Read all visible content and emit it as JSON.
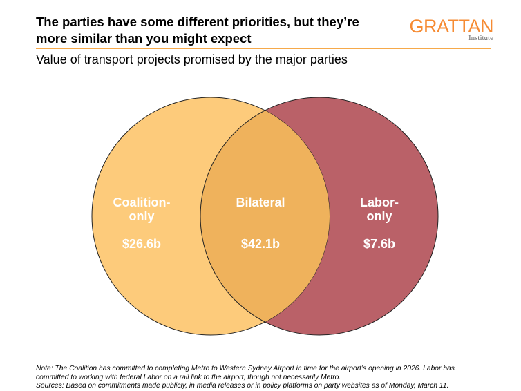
{
  "title_lines": [
    "The parties have some different priorities, but they’re",
    "more similar than you might expect"
  ],
  "logo": {
    "name": "GRATTAN",
    "sub": "Institute"
  },
  "subtitle": "Value of transport projects promised by the major parties",
  "chart_data": {
    "type": "venn",
    "sets": [
      {
        "name": "Coalition-only",
        "label_lines": [
          "Coalition-",
          "only"
        ],
        "value_label": "$26.6b",
        "value": 26.6,
        "color": "#FDCB7B"
      },
      {
        "name": "Bilateral",
        "label_lines": [
          "Bilateral"
        ],
        "value_label": "$42.1b",
        "value": 42.1,
        "color": "#EFB25C"
      },
      {
        "name": "Labor-only",
        "label_lines": [
          "Labor-",
          "only"
        ],
        "value_label": "$7.6b",
        "value": 7.6,
        "color": "#BA6168"
      }
    ],
    "units": "billion dollars"
  },
  "notes": {
    "line1": "Note: The Coalition has committed to completing Metro to Western Sydney Airport in time for the airport’s opening in 2026. Labor has",
    "line2": "committed to working with federal Labor on a rail link to the airport, though not necessarily Metro.",
    "line3": "Sources: Based on commitments made publicly, in media releases or in policy platforms on party websites as of Monday, March 11."
  }
}
